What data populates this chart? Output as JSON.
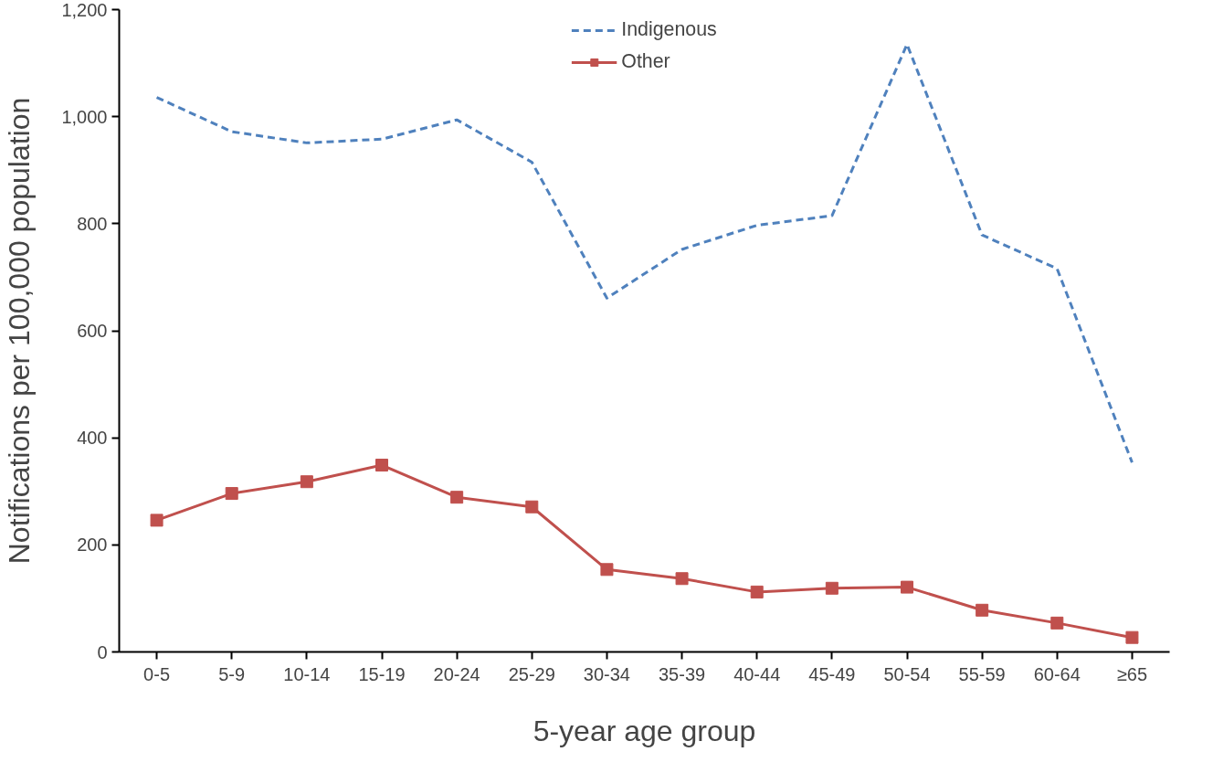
{
  "chart_data": {
    "type": "line",
    "xlabel": "5-year age group",
    "ylabel": "Notifications per 100,000 population",
    "categories": [
      "0-5",
      "5-9",
      "10-14",
      "15-19",
      "20-24",
      "25-29",
      "30-34",
      "35-39",
      "40-44",
      "45-49",
      "50-54",
      "55-59",
      "60-64",
      "≥65"
    ],
    "ylim": [
      0,
      1200
    ],
    "yticks": [
      0,
      {
        "value": 200,
        "label": "200"
      },
      {
        "value": 400,
        "label": "400"
      },
      {
        "value": 600,
        "label": "600"
      },
      {
        "value": 800,
        "label": "800"
      },
      {
        "value": 1000,
        "label": "1,000"
      },
      {
        "value": 1200,
        "label": "1,200"
      }
    ],
    "grid": false,
    "legend": "top",
    "series": [
      {
        "name": "Indigenous",
        "color": "#4f81bd",
        "line_style": "dashed",
        "marker": "none",
        "values": [
          1036,
          972,
          951,
          958,
          994,
          915,
          661,
          752,
          797,
          815,
          1135,
          779,
          716,
          354
        ]
      },
      {
        "name": "Other",
        "color": "#c0504d",
        "line_style": "solid",
        "marker": "square",
        "values": [
          246,
          296,
          318,
          349,
          289,
          271,
          154,
          137,
          112,
          119,
          121,
          78,
          54,
          27
        ]
      }
    ]
  }
}
